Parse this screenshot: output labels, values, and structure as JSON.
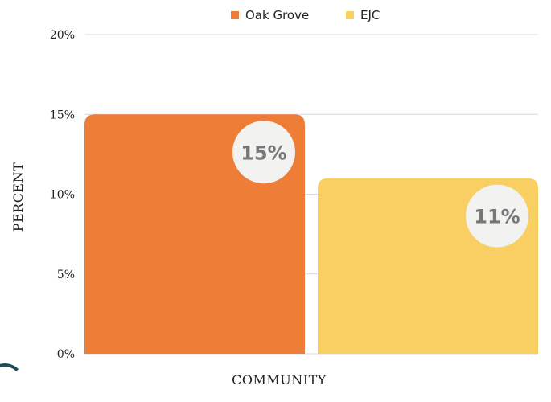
{
  "chart_data": {
    "type": "bar",
    "categories": [
      "Oak Grove",
      "EJC"
    ],
    "values": [
      15,
      11
    ],
    "value_labels": [
      "15%",
      "11%"
    ],
    "xlabel": "COMMUNITY",
    "ylabel": "PERCENT",
    "ylim": [
      0,
      20
    ],
    "yticks": [
      0,
      5,
      10,
      15,
      20
    ],
    "ytick_labels": [
      "0%",
      "5%",
      "10%",
      "15%",
      "20%"
    ],
    "grid": true,
    "legend": "top-center",
    "series": [
      {
        "name": "Oak Grove",
        "value": 15,
        "color": "#ED7D37"
      },
      {
        "name": "EJC",
        "value": 11,
        "color": "#F9CE62"
      }
    ]
  },
  "colors": {
    "gridline": "#d9d9d9",
    "bubble": "#f2f2f0",
    "bubble_text": "#777777",
    "corner_accent": "#1f4e5a"
  }
}
